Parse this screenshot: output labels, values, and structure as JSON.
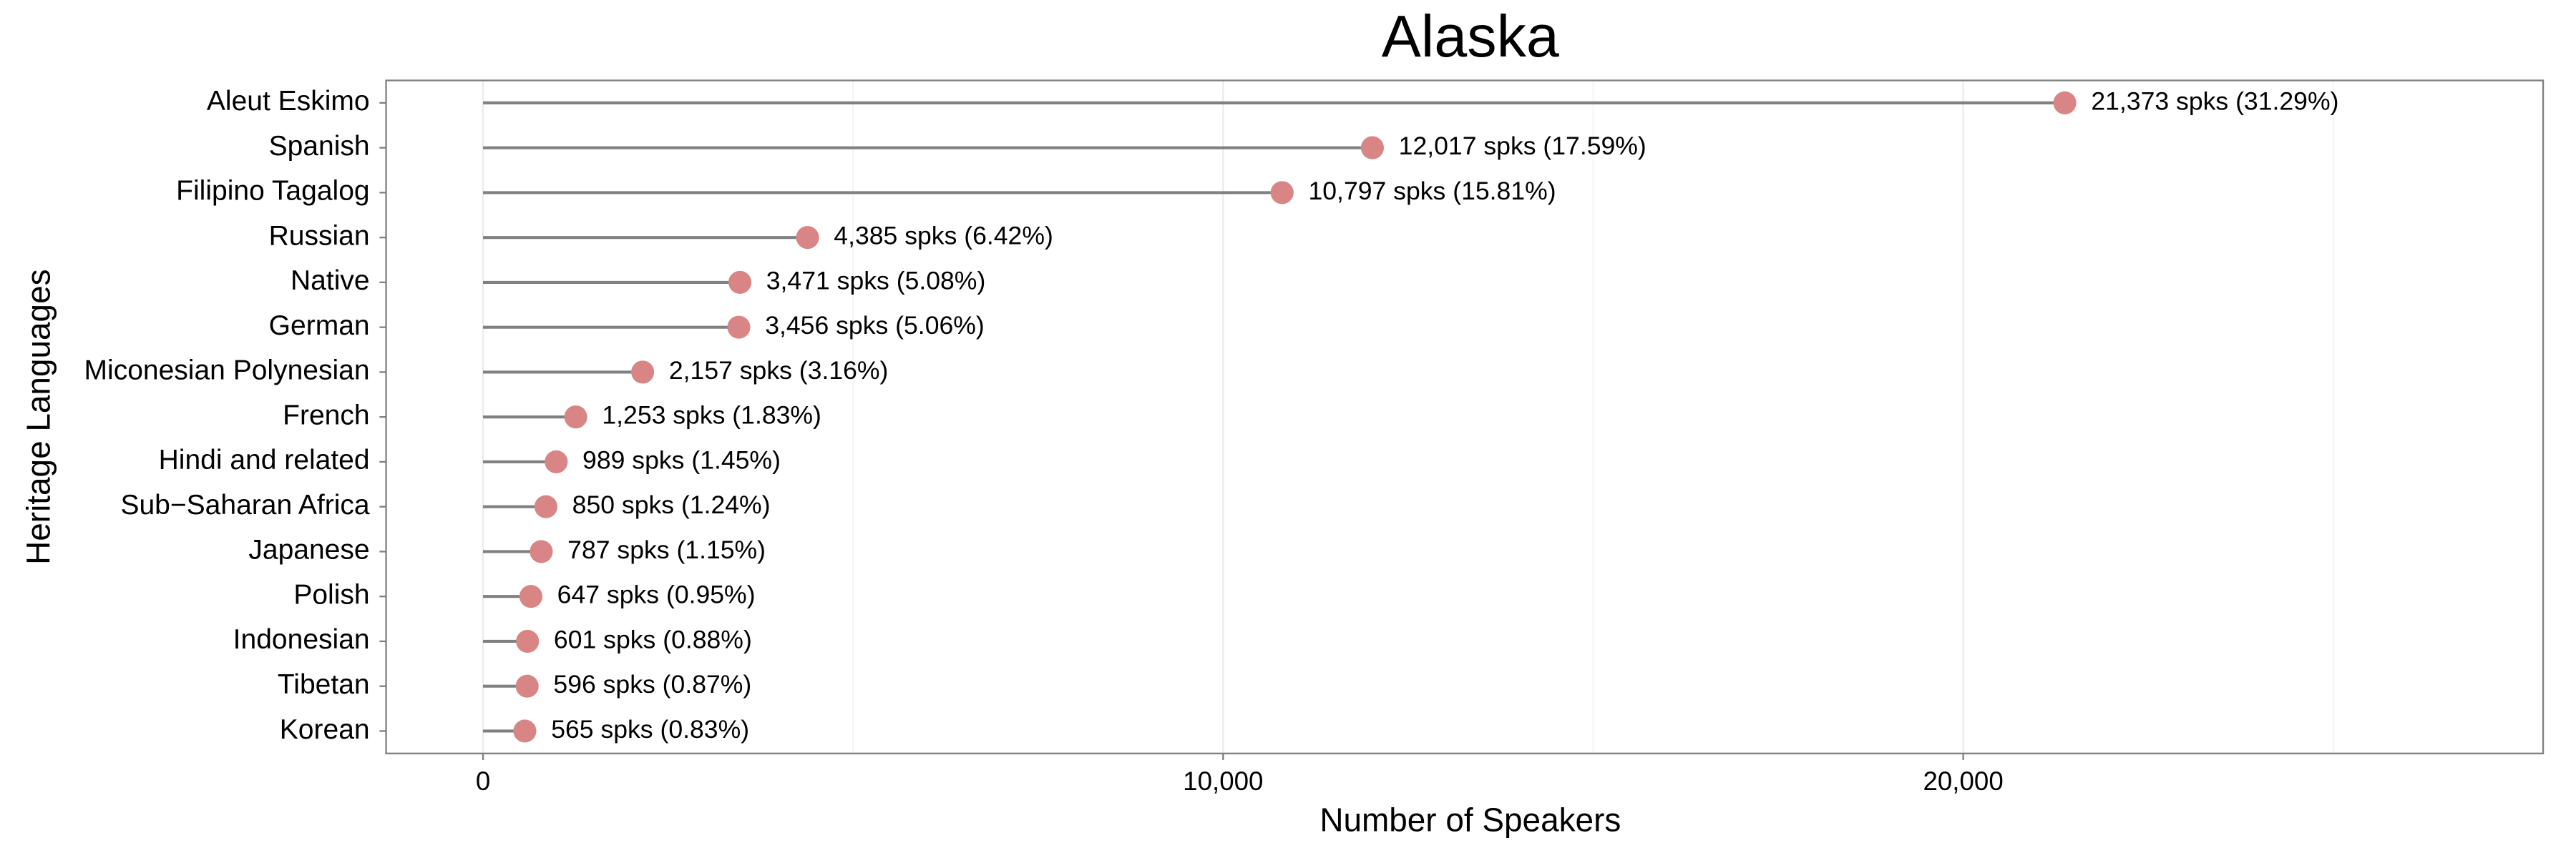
{
  "chart_data": {
    "type": "lollipop",
    "title": "Alaska",
    "x_label": "Number of Speakers",
    "y_label": "Heritage Languages",
    "categories": [
      "Aleut Eskimo",
      "Spanish",
      "Filipino Tagalog",
      "Russian",
      "Native",
      "German",
      "Miconesian Polynesian",
      "French",
      "Hindi and related",
      "Sub−Saharan Africa",
      "Japanese",
      "Polish",
      "Indonesian",
      "Tibetan",
      "Korean"
    ],
    "values": [
      21373,
      12017,
      10797,
      4385,
      3471,
      3456,
      2157,
      1253,
      989,
      850,
      787,
      647,
      601,
      596,
      565
    ],
    "value_labels": [
      "21,373 spks (31.29%)",
      "12,017 spks (17.59%)",
      "10,797 spks (15.81%)",
      "4,385 spks (6.42%)",
      "3,471 spks (5.08%)",
      "3,456 spks (5.06%)",
      "2,157 spks (3.16%)",
      "1,253 spks (1.83%)",
      "989 spks (1.45%)",
      "850 spks (1.24%)",
      "787 spks (1.15%)",
      "647 spks (0.95%)",
      "601 spks (0.88%)",
      "596 spks (0.87%)",
      "565 spks (0.83%)"
    ],
    "color": "#d98585",
    "stem_color": "#808080",
    "xlim": [
      -1310,
      27836
    ],
    "xticks": [
      0,
      {
        "value": 10000,
        "label": "10,000"
      },
      {
        "value": 20000,
        "label": "20,000"
      }
    ],
    "xminor": [
      5000,
      15000,
      25000
    ],
    "grid": true
  }
}
